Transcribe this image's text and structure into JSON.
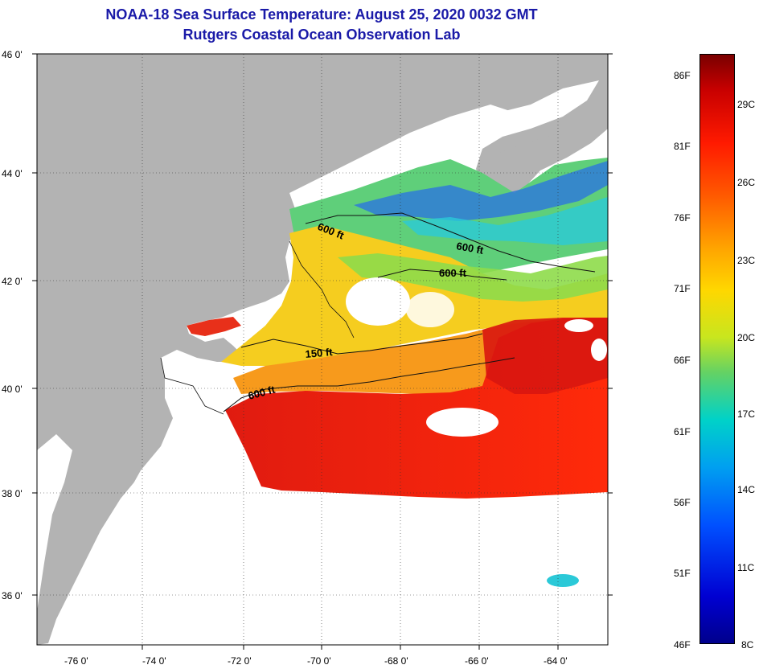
{
  "title_line1": "NOAA-18 Sea Surface Temperature:  August 25, 2020 0032 GMT",
  "title_line2": "Rutgers Coastal Ocean Observation Lab",
  "lat_labels": [
    "46 0'",
    "44 0'",
    "42 0'",
    "40 0'",
    "38 0'",
    "36 0'"
  ],
  "lon_labels": [
    "-76 0'",
    "-74 0'",
    "-72 0'",
    "-70 0'",
    "-68 0'",
    "-66 0'",
    "-64 0'"
  ],
  "contour_labels": [
    "600 ft",
    "600 ft",
    "600 ft",
    "150 ft",
    "600 ft"
  ],
  "colorbar": {
    "fahrenheit": [
      "86F",
      "81F",
      "76F",
      "71F",
      "66F",
      "61F",
      "56F",
      "51F",
      "46F"
    ],
    "celsius": [
      "29C",
      "26C",
      "23C",
      "20C",
      "17C",
      "14C",
      "11C",
      "8C"
    ]
  },
  "colors": {
    "title": "#1a1aa8",
    "land": "#b3b3b3",
    "cloud": "#ffffff"
  }
}
